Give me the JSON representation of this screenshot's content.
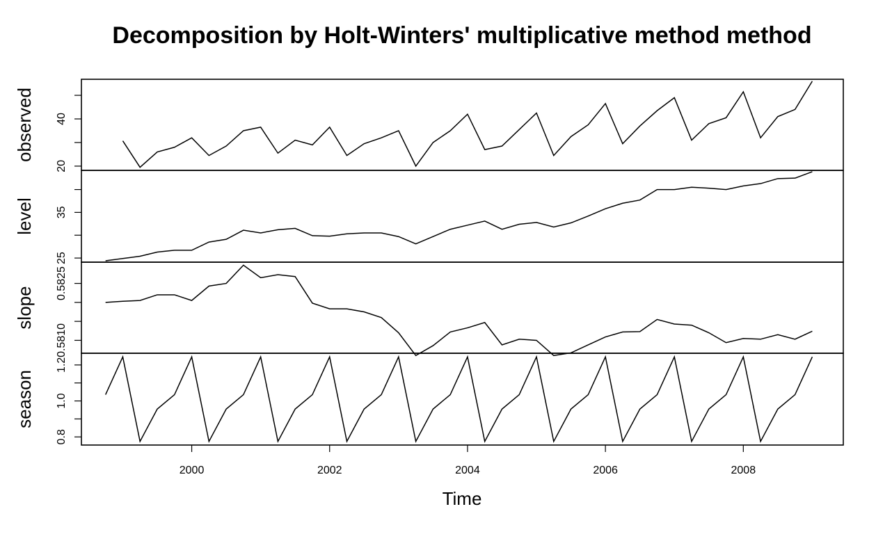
{
  "chart_data": {
    "type": "line",
    "title": "Decomposition by Holt-Winters' multiplicative method method",
    "xlabel": "Time",
    "xlim": [
      1998.4,
      2009.45
    ],
    "x_ticks": [
      2000,
      2002,
      2004,
      2006,
      2008
    ],
    "x_tick_labels": [
      "2000",
      "2002",
      "2004",
      "2006",
      "2008"
    ],
    "panels": [
      {
        "name": "observed",
        "ylabel": "observed",
        "ylim": [
          18.2,
          56.8
        ],
        "y_ticks": [
          20,
          30,
          40,
          50
        ],
        "y_tick_labels": [
          "20",
          "",
          "40",
          ""
        ],
        "x": [
          1999.0,
          1999.25,
          1999.5,
          1999.75,
          2000.0,
          2000.25,
          2000.5,
          2000.75,
          2001.0,
          2001.25,
          2001.5,
          2001.75,
          2002.0,
          2002.25,
          2002.5,
          2002.75,
          2003.0,
          2003.25,
          2003.5,
          2003.75,
          2004.0,
          2004.25,
          2004.5,
          2004.75,
          2005.0,
          2005.25,
          2005.5,
          2005.75,
          2006.0,
          2006.25,
          2006.5,
          2006.75,
          2007.0,
          2007.25,
          2007.5,
          2007.75,
          2008.0,
          2008.25,
          2008.5,
          2008.75,
          2009.0
        ],
        "values": [
          30.7,
          19.5,
          26.0,
          28.0,
          32.0,
          24.5,
          28.5,
          35.0,
          36.5,
          25.5,
          31.0,
          29.0,
          36.5,
          24.5,
          29.5,
          32.0,
          35.0,
          20.0,
          30.0,
          35.0,
          42.0,
          27.0,
          28.5,
          35.5,
          42.5,
          24.5,
          32.5,
          37.5,
          46.5,
          29.5,
          37.0,
          43.5,
          49.0,
          31.0,
          38.0,
          40.5,
          51.5,
          32.0,
          41.0,
          44.0,
          56.0
        ]
      },
      {
        "name": "level",
        "ylabel": "level",
        "ylim": [
          24.1,
          44.2
        ],
        "y_ticks": [
          25,
          30,
          35,
          40
        ],
        "y_tick_labels": [
          "25",
          "",
          "35",
          ""
        ],
        "x": [
          1998.75,
          1999.0,
          1999.25,
          1999.5,
          1999.75,
          2000.0,
          2000.25,
          2000.5,
          2000.75,
          2001.0,
          2001.25,
          2001.5,
          2001.75,
          2002.0,
          2002.25,
          2002.5,
          2002.75,
          2003.0,
          2003.25,
          2003.5,
          2003.75,
          2004.0,
          2004.25,
          2004.5,
          2004.75,
          2005.0,
          2005.25,
          2005.5,
          2005.75,
          2006.0,
          2006.25,
          2006.5,
          2006.75,
          2007.0,
          2007.25,
          2007.5,
          2007.75,
          2008.0,
          2008.25,
          2008.5,
          2008.75,
          2009.0
        ],
        "values": [
          24.4,
          24.9,
          25.4,
          26.3,
          26.7,
          26.7,
          28.5,
          29.1,
          31.1,
          30.5,
          31.2,
          31.5,
          29.9,
          29.8,
          30.3,
          30.5,
          30.5,
          29.7,
          28.1,
          29.7,
          31.3,
          32.2,
          33.1,
          31.3,
          32.4,
          32.8,
          31.8,
          32.7,
          34.2,
          35.8,
          37.0,
          37.7,
          40.0,
          40.0,
          40.5,
          40.3,
          40.0,
          40.8,
          41.3,
          42.4,
          42.5,
          43.9
        ]
      },
      {
        "name": "slope",
        "ylabel": "slope",
        "ylim": [
          0.58066,
          0.58306
        ],
        "y_ticks": [
          0.581,
          0.5815,
          0.582,
          0.5825
        ],
        "y_tick_labels": [
          "0.5810",
          "",
          "",
          "0.5825"
        ],
        "x": [
          1998.75,
          1999.0,
          1999.25,
          1999.5,
          1999.75,
          2000.0,
          2000.25,
          2000.5,
          2000.75,
          2001.0,
          2001.25,
          2001.5,
          2001.75,
          2002.0,
          2002.25,
          2002.5,
          2002.75,
          2003.0,
          2003.25,
          2003.5,
          2003.75,
          2004.0,
          2004.25,
          2004.5,
          2004.75,
          2005.0,
          2005.25,
          2005.5,
          2005.75,
          2006.0,
          2006.25,
          2006.5,
          2006.75,
          2007.0,
          2007.25,
          2007.5,
          2007.75,
          2008.0,
          2008.25,
          2008.5,
          2008.75,
          2009.0
        ],
        "values": [
          0.582,
          0.58203,
          0.58205,
          0.5822,
          0.5822,
          0.58205,
          0.58243,
          0.5825,
          0.58298,
          0.58265,
          0.58273,
          0.58268,
          0.58198,
          0.58183,
          0.58183,
          0.58175,
          0.5816,
          0.5812,
          0.5806,
          0.58086,
          0.58122,
          0.58133,
          0.58147,
          0.58088,
          0.58103,
          0.581,
          0.5806,
          0.58067,
          0.58088,
          0.58109,
          0.58122,
          0.58123,
          0.58155,
          0.58143,
          0.5814,
          0.5812,
          0.58094,
          0.58105,
          0.58103,
          0.58115,
          0.58103,
          0.58124
        ]
      },
      {
        "name": "season",
        "ylabel": "season",
        "ylim": [
          0.755,
          1.265
        ],
        "y_ticks": [
          0.8,
          0.9,
          1.0,
          1.1,
          1.2
        ],
        "y_tick_labels": [
          "0.8",
          "",
          "1.0",
          "",
          "1.2"
        ],
        "x": [
          1998.75,
          1999.0,
          1999.25,
          1999.5,
          1999.75,
          2000.0,
          2000.25,
          2000.5,
          2000.75,
          2001.0,
          2001.25,
          2001.5,
          2001.75,
          2002.0,
          2002.25,
          2002.5,
          2002.75,
          2003.0,
          2003.25,
          2003.5,
          2003.75,
          2004.0,
          2004.25,
          2004.5,
          2004.75,
          2005.0,
          2005.25,
          2005.5,
          2005.75,
          2006.0,
          2006.25,
          2006.5,
          2006.75,
          2007.0,
          2007.25,
          2007.5,
          2007.75,
          2008.0,
          2008.25,
          2008.5,
          2008.75,
          2009.0
        ],
        "values": [
          1.035,
          1.245,
          0.775,
          0.955,
          1.035,
          1.245,
          0.775,
          0.955,
          1.035,
          1.245,
          0.775,
          0.955,
          1.035,
          1.245,
          0.775,
          0.955,
          1.035,
          1.245,
          0.775,
          0.955,
          1.035,
          1.245,
          0.775,
          0.955,
          1.035,
          1.245,
          0.775,
          0.955,
          1.035,
          1.245,
          0.775,
          0.955,
          1.035,
          1.245,
          0.775,
          0.955,
          1.035,
          1.245,
          0.775,
          0.955,
          1.035,
          1.245
        ]
      }
    ]
  }
}
